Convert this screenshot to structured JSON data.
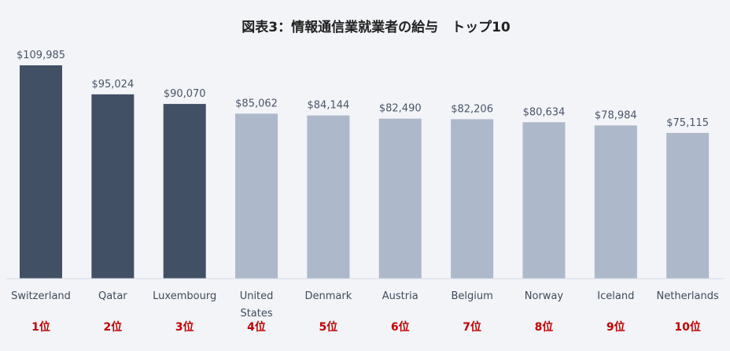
{
  "chart_data": {
    "type": "bar",
    "title": "図表3：情報通信業就業者の給与　トップ10",
    "categories": [
      "Switzerland",
      "Qatar",
      "Luxembourg",
      "United States",
      "Denmark",
      "Austria",
      "Belgium",
      "Norway",
      "Iceland",
      "Netherlands"
    ],
    "category_lines": [
      [
        "Switzerland"
      ],
      [
        "Qatar"
      ],
      [
        "Luxembourg"
      ],
      [
        "United",
        "States"
      ],
      [
        "Denmark"
      ],
      [
        "Austria"
      ],
      [
        "Belgium"
      ],
      [
        "Norway"
      ],
      [
        "Iceland"
      ],
      [
        "Netherlands"
      ]
    ],
    "values": [
      109985,
      95024,
      90070,
      85062,
      84144,
      82490,
      82206,
      80634,
      78984,
      75115
    ],
    "value_labels": [
      "$109,985",
      "$95,024",
      "$90,070",
      "$85,062",
      "$84,144",
      "$82,490",
      "$82,206",
      "$80,634",
      "$78,984",
      "$75,115"
    ],
    "ranks": [
      "1位",
      "2位",
      "3位",
      "4位",
      "5位",
      "6位",
      "7位",
      "8位",
      "9位",
      "10位"
    ],
    "highlight_count": 3,
    "ylim": [
      0,
      110000
    ],
    "grid": false,
    "colors": {
      "highlight": "#425066",
      "normal": "#adb8ca",
      "rank": "#c00000",
      "background": "#f2f4f8"
    }
  }
}
